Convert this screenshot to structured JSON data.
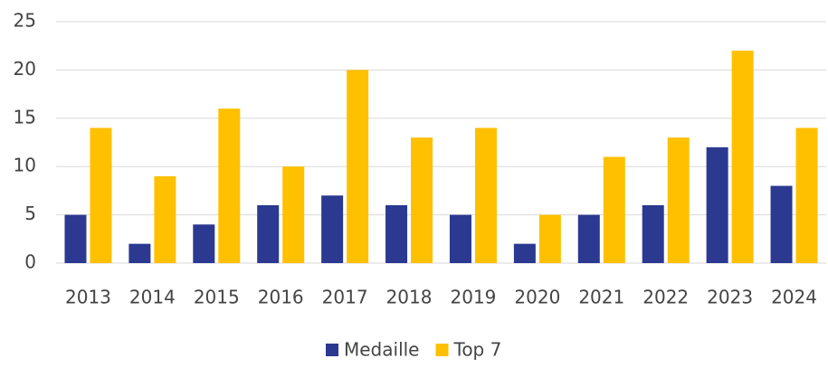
{
  "chart_data": {
    "type": "bar",
    "categories": [
      "2013",
      "2014",
      "2015",
      "2016",
      "2017",
      "2018",
      "2019",
      "2020",
      "2021",
      "2022",
      "2023",
      "2024"
    ],
    "series": [
      {
        "name": "Medaille",
        "color": "#2b3990",
        "values": [
          5,
          2,
          4,
          6,
          7,
          6,
          5,
          2,
          5,
          6,
          12,
          8
        ]
      },
      {
        "name": "Top 7",
        "color": "#ffc000",
        "values": [
          14,
          9,
          16,
          10,
          20,
          13,
          14,
          5,
          11,
          13,
          22,
          14
        ]
      }
    ],
    "ylim": [
      0,
      25
    ],
    "yticks": [
      0,
      5,
      10,
      15,
      20,
      25
    ],
    "grid": true,
    "legend": "bottom"
  }
}
